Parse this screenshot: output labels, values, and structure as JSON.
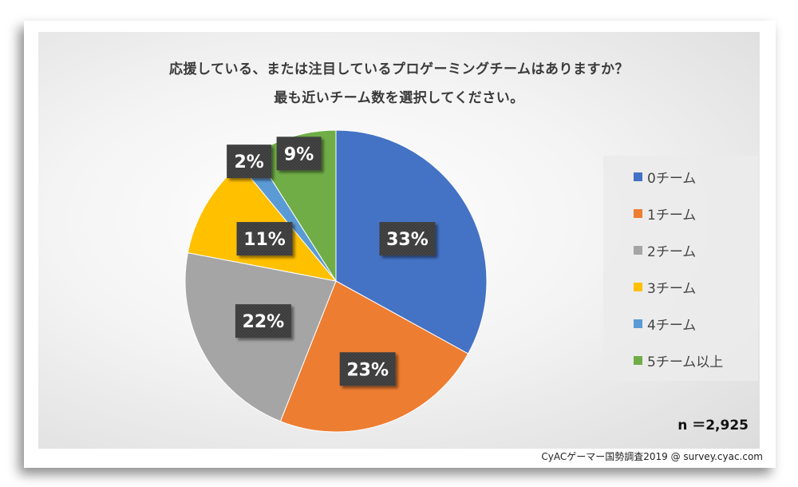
{
  "chart_data": {
    "type": "pie",
    "title_line1": "応援している、または注目しているプロゲーミングチームはありますか？",
    "title_line2": "最も近いチーム数を選択してください。",
    "slices": [
      {
        "name": "0チーム",
        "value": 33,
        "label": "33%",
        "color": "#4472c4"
      },
      {
        "name": "1チーム",
        "value": 23,
        "label": "23%",
        "color": "#ed7d31"
      },
      {
        "name": "2チーム",
        "value": 22,
        "label": "22%",
        "color": "#a5a5a5"
      },
      {
        "name": "3チーム",
        "value": 11,
        "label": "11%",
        "color": "#ffc000"
      },
      {
        "name": "4チーム",
        "value": 2,
        "label": "2%",
        "color": "#5b9bd5"
      },
      {
        "name": "5チーム以上",
        "value": 9,
        "label": "9%",
        "color": "#70ad47"
      }
    ],
    "legend_position": "right",
    "sample_size": "n ＝2,925"
  },
  "source": "CyACゲーマー国勢調査2019 @ survey.cyac.com"
}
